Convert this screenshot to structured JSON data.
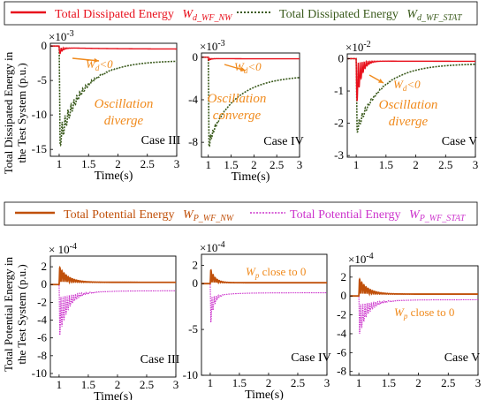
{
  "colors": {
    "wd_nw": "#e8101c",
    "wd_stat": "#3a5a1c",
    "wp_nw": "#c0500a",
    "wp_stat": "#cc33cc",
    "annotation": "#f08a1c",
    "axis": "#000000"
  },
  "top": {
    "legend": {
      "nw_text": "Total Dissipated Energy",
      "nw_sym": "W",
      "nw_sub": "d_WF_NW",
      "stat_text": "Total Dissipated Energy",
      "stat_sym": "W",
      "stat_sub": "d_WF_STAT"
    },
    "ylabel_line1": "Total Dissipated Energy in",
    "ylabel_line2": "the Test System (p.u.)"
  },
  "bottom": {
    "legend": {
      "nw_text": "Total Potential Energy",
      "nw_sym": "W",
      "nw_sub": "P_WF_NW",
      "stat_text": "Total Potential Energy",
      "stat_sym": "W",
      "stat_sub": "P_WF_STAT"
    },
    "ylabel_line1": "Total Potential Energy in",
    "ylabel_line2": "the Test System (p.u.)"
  },
  "chart_data": [
    {
      "type": "line",
      "id": "d3",
      "group": "top",
      "case_label": "Case III",
      "exp_base": "×10",
      "exp": "-3",
      "xlabel": "Time(s)",
      "xlim": [
        0.85,
        3
      ],
      "ylim": [
        -16,
        0.4
      ],
      "xticks": [
        1,
        1.5,
        2,
        2.5,
        3
      ],
      "yticks": [
        0,
        -5,
        -10,
        -15
      ],
      "annotations": [
        {
          "sym": "W",
          "sub": "d",
          "text": "<0"
        },
        {
          "text": "Oscillation"
        },
        {
          "text": "diverge"
        }
      ],
      "nw": {
        "final": -0.45,
        "a": 1.6,
        "tau": 0.06,
        "A2": 0.5,
        "tau2": 0.8,
        "f": 15,
        "amp": 0.7
      },
      "stat": {
        "start": 0,
        "peak": -15.2,
        "final": -2.1,
        "dtau": 0.45,
        "amp": 0.75,
        "tau": 0.25,
        "f": 10
      }
    },
    {
      "type": "line",
      "id": "d4",
      "group": "top",
      "case_label": "Case IV",
      "exp_base": "×10",
      "exp": "-3",
      "xlabel": "Time(s)",
      "xlim": [
        0.85,
        3
      ],
      "ylim": [
        -9.4,
        0.4
      ],
      "xticks": [
        1,
        1.5,
        2,
        2.5,
        3
      ],
      "yticks": [
        0,
        -4,
        -8
      ],
      "annotations": [
        {
          "sym": "W",
          "sub": "d",
          "text": "<0"
        },
        {
          "text": "Oscillation"
        },
        {
          "text": "converge"
        }
      ],
      "nw": {
        "final": -0.15,
        "a": 0.35,
        "tau": 0.06,
        "A2": 0.2,
        "tau2": 0.6,
        "f": 15,
        "amp": 0.6
      },
      "stat": {
        "start": 0,
        "peak": -8.8,
        "final": -1.7,
        "dtau": 0.6,
        "amp": 0.85,
        "tau": 0.12,
        "f": 10
      }
    },
    {
      "type": "line",
      "id": "d5",
      "group": "top",
      "case_label": "Case V",
      "exp_base": "×10",
      "exp": "-2",
      "xlabel": "",
      "xlim": [
        0.85,
        3
      ],
      "ylim": [
        -3.05,
        0.15
      ],
      "xticks": [
        1,
        1.5,
        2,
        2.5,
        3
      ],
      "yticks": [
        0,
        -1,
        -2,
        -3
      ],
      "annotations": [
        {
          "sym": "W",
          "sub": "d",
          "text": "<0"
        },
        {
          "text": "Oscillation"
        },
        {
          "text": "diverge"
        }
      ],
      "nw": {
        "final": -0.08,
        "a": 1.9,
        "tau": 0.08,
        "A2": 0.2,
        "tau2": 0.5,
        "f": 15,
        "amp": 0.8
      },
      "stat": {
        "start": 0,
        "peak": -2.4,
        "final": -0.15,
        "dtau": 0.45,
        "amp": 0.85,
        "tau": 0.2,
        "f": 10
      }
    },
    {
      "type": "line",
      "id": "p3",
      "group": "bottom",
      "case_label": "Case III",
      "exp_base": "× 10",
      "exp": "-4",
      "xlabel": "Time(s)",
      "xlim": [
        0.85,
        3
      ],
      "ylim": [
        -10.4,
        3.2
      ],
      "xticks": [
        1,
        1.5,
        2,
        2.5,
        3
      ],
      "yticks": [
        2,
        0,
        -2,
        -4,
        -6,
        -8,
        -10
      ],
      "annotations": [],
      "nw": {
        "final": 0.25,
        "a": 1.8,
        "tau": 0.15,
        "f": 14
      },
      "stat": {
        "final": -0.7,
        "a": 4.8,
        "tau": 0.15,
        "f": 14,
        "drift": -0.6,
        "dtau": 0.4
      }
    },
    {
      "type": "line",
      "id": "p4",
      "group": "bottom",
      "case_label": "Case IV",
      "exp_base": "×10",
      "exp": "-4",
      "xlabel": "Time(s)",
      "xlim": [
        0.85,
        3
      ],
      "ylim": [
        -10,
        3.2
      ],
      "xticks": [
        1,
        1.5,
        2,
        2.5,
        3
      ],
      "yticks": [
        2,
        0,
        -5,
        -10
      ],
      "annotations": [
        {
          "sym": "W",
          "sub": "p",
          "text": " close to 0"
        }
      ],
      "nw": {
        "final": 0.1,
        "a": 1.6,
        "tau": 0.08,
        "f": 14
      },
      "stat": {
        "final": -1.0,
        "a": 3.5,
        "tau": 0.06,
        "f": 14,
        "drift": -0.4,
        "dtau": 0.3
      }
    },
    {
      "type": "line",
      "id": "p5",
      "group": "bottom",
      "case_label": "Case V",
      "exp_base": "×10",
      "exp": "-4",
      "xlabel": "",
      "xlim": [
        0.85,
        3
      ],
      "ylim": [
        -8.4,
        3.2
      ],
      "xticks": [
        1,
        1.5,
        2,
        2.5,
        3
      ],
      "yticks": [
        2,
        0,
        -2,
        -4,
        -6,
        -8
      ],
      "annotations": [
        {
          "sym": "W",
          "sub": "p",
          "text": " close to 0"
        }
      ],
      "nw": {
        "final": 0.2,
        "a": 1.7,
        "tau": 0.15,
        "f": 14
      },
      "stat": {
        "final": -0.4,
        "a": 3.5,
        "tau": 0.15,
        "f": 14,
        "drift": -0.4,
        "dtau": 0.35
      }
    }
  ]
}
